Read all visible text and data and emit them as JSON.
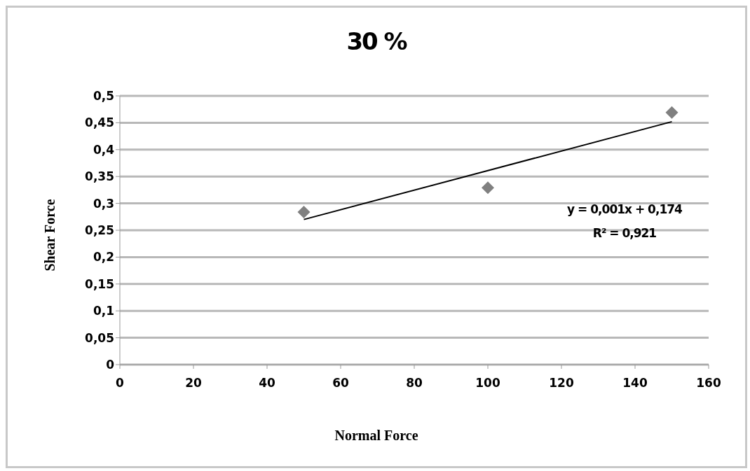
{
  "chart_data": {
    "type": "scatter",
    "title": "30 %",
    "xlabel": "Normal Force",
    "ylabel": "Shear Force",
    "series": [
      {
        "color": "#808080",
        "marker": "diamond",
        "x": [
          50,
          100,
          150
        ],
        "values": [
          0.284,
          0.329,
          0.469
        ]
      },
      {
        "type": "line",
        "color": "#000000",
        "marker": "none",
        "line_style": "solid",
        "x": [
          50,
          150
        ],
        "values": [
          0.27,
          0.452
        ]
      }
    ],
    "annotations": [
      "y = 0,001x + 0,174",
      "R² = 0,921"
    ],
    "xlim": [
      0,
      160
    ],
    "xticks": [
      0,
      20,
      40,
      60,
      80,
      100,
      120,
      140,
      160
    ],
    "ylim": [
      0,
      0.5
    ],
    "yticks": [
      {
        "value": 0,
        "label": "0"
      },
      {
        "value": 0.05,
        "label": "0,05"
      },
      {
        "value": 0.1,
        "label": "0,1"
      },
      {
        "value": 0.15,
        "label": "0,15"
      },
      {
        "value": 0.2,
        "label": "0,2"
      },
      {
        "value": 0.25,
        "label": "0,25"
      },
      {
        "value": 0.3,
        "label": "0,3"
      },
      {
        "value": 0.35,
        "label": "0,35"
      },
      {
        "value": 0.4,
        "label": "0,4"
      },
      {
        "value": 0.45,
        "label": "0,45"
      },
      {
        "value": 0.5,
        "label": "0,5"
      }
    ],
    "grid": "y",
    "legend": false
  }
}
